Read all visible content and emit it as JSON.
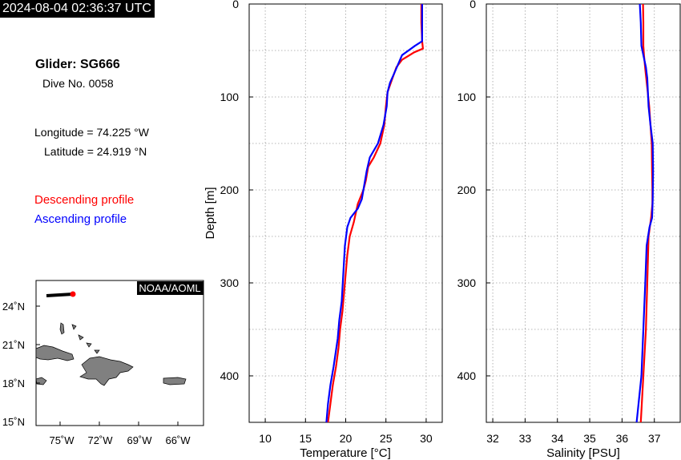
{
  "header": {
    "timestamp": "2024-08-04 02:36:37 UTC",
    "glider": "Glider: SG666",
    "dive": "Dive No. 0058",
    "longitude": "Longitude = 74.225 °W",
    "latitude": "Latitude = 24.919 °N"
  },
  "legend": {
    "descending": "Descending profile",
    "ascending": "Ascending profile",
    "descending_color": "#ff0000",
    "ascending_color": "#0000ff"
  },
  "map": {
    "badge": "NOAA/AOML",
    "lat_labels": [
      "24˚N",
      "21˚N",
      "18˚N",
      "15˚N"
    ],
    "lon_labels": [
      "75˚W",
      "72˚W",
      "69˚W",
      "66˚W"
    ],
    "land_color": "#808080",
    "track_color": "#000000",
    "position_color": "#ff0000"
  },
  "chart_data": [
    {
      "type": "line",
      "xlabel": "Temperature [°C]",
      "ylabel": "Depth [m]",
      "xlim": [
        8,
        32
      ],
      "ylim": [
        0,
        450
      ],
      "y_inverted": true,
      "xticks": [
        10,
        15,
        20,
        25,
        30
      ],
      "yticks": [
        0,
        100,
        200,
        300,
        400
      ],
      "grid": true,
      "series": [
        {
          "name": "Descending profile",
          "color": "#ff0000",
          "points": [
            [
              29.4,
              0
            ],
            [
              29.4,
              20
            ],
            [
              29.5,
              40
            ],
            [
              29.6,
              48
            ],
            [
              28.5,
              52
            ],
            [
              27.0,
              60
            ],
            [
              26.3,
              68
            ],
            [
              25.6,
              85
            ],
            [
              25.2,
              95
            ],
            [
              25.0,
              110
            ],
            [
              24.8,
              130
            ],
            [
              24.3,
              150
            ],
            [
              23.5,
              165
            ],
            [
              22.8,
              175
            ],
            [
              22.5,
              190
            ],
            [
              22.2,
              200
            ],
            [
              21.5,
              215
            ],
            [
              21.0,
              235
            ],
            [
              20.5,
              250
            ],
            [
              20.2,
              270
            ],
            [
              19.9,
              300
            ],
            [
              19.6,
              330
            ],
            [
              19.3,
              350
            ],
            [
              19.1,
              370
            ],
            [
              18.8,
              390
            ],
            [
              18.4,
              410
            ],
            [
              18.1,
              430
            ],
            [
              17.8,
              450
            ]
          ]
        },
        {
          "name": "Ascending profile",
          "color": "#0000ff",
          "points": [
            [
              29.5,
              0
            ],
            [
              29.5,
              20
            ],
            [
              29.5,
              40
            ],
            [
              28.6,
              45
            ],
            [
              27.0,
              55
            ],
            [
              26.5,
              65
            ],
            [
              26.0,
              75
            ],
            [
              25.5,
              85
            ],
            [
              25.2,
              95
            ],
            [
              25.1,
              110
            ],
            [
              24.7,
              130
            ],
            [
              24.0,
              150
            ],
            [
              23.0,
              165
            ],
            [
              22.6,
              180
            ],
            [
              22.0,
              210
            ],
            [
              21.5,
              220
            ],
            [
              20.6,
              230
            ],
            [
              20.2,
              240
            ],
            [
              19.9,
              260
            ],
            [
              19.7,
              290
            ],
            [
              19.5,
              320
            ],
            [
              19.2,
              340
            ],
            [
              19.0,
              360
            ],
            [
              18.5,
              390
            ],
            [
              18.1,
              410
            ],
            [
              17.8,
              430
            ],
            [
              17.6,
              450
            ]
          ]
        }
      ]
    },
    {
      "type": "line",
      "xlabel": "Salinity [PSU]",
      "ylabel": "",
      "xlim": [
        31.8,
        37.8
      ],
      "ylim": [
        0,
        450
      ],
      "y_inverted": true,
      "xticks": [
        32,
        33,
        34,
        35,
        36,
        37
      ],
      "yticks": [
        0,
        100,
        200,
        300,
        400
      ],
      "grid": true,
      "series": [
        {
          "name": "Descending profile",
          "color": "#ff0000",
          "points": [
            [
              36.65,
              0
            ],
            [
              36.66,
              20
            ],
            [
              36.66,
              45
            ],
            [
              36.68,
              55
            ],
            [
              36.72,
              70
            ],
            [
              36.78,
              90
            ],
            [
              36.84,
              110
            ],
            [
              36.88,
              130
            ],
            [
              36.92,
              150
            ],
            [
              36.93,
              180
            ],
            [
              36.94,
              200
            ],
            [
              36.94,
              215
            ],
            [
              36.9,
              230
            ],
            [
              36.82,
              250
            ],
            [
              36.78,
              300
            ],
            [
              36.74,
              350
            ],
            [
              36.66,
              400
            ],
            [
              36.58,
              450
            ]
          ]
        },
        {
          "name": "Ascending profile",
          "color": "#0000ff",
          "points": [
            [
              36.55,
              0
            ],
            [
              36.58,
              20
            ],
            [
              36.6,
              45
            ],
            [
              36.66,
              55
            ],
            [
              36.74,
              68
            ],
            [
              36.78,
              80
            ],
            [
              36.82,
              110
            ],
            [
              36.88,
              130
            ],
            [
              36.95,
              150
            ],
            [
              36.96,
              180
            ],
            [
              36.95,
              210
            ],
            [
              36.93,
              230
            ],
            [
              36.85,
              240
            ],
            [
              36.76,
              260
            ],
            [
              36.72,
              300
            ],
            [
              36.66,
              350
            ],
            [
              36.6,
              400
            ],
            [
              36.45,
              450
            ]
          ]
        }
      ]
    }
  ]
}
